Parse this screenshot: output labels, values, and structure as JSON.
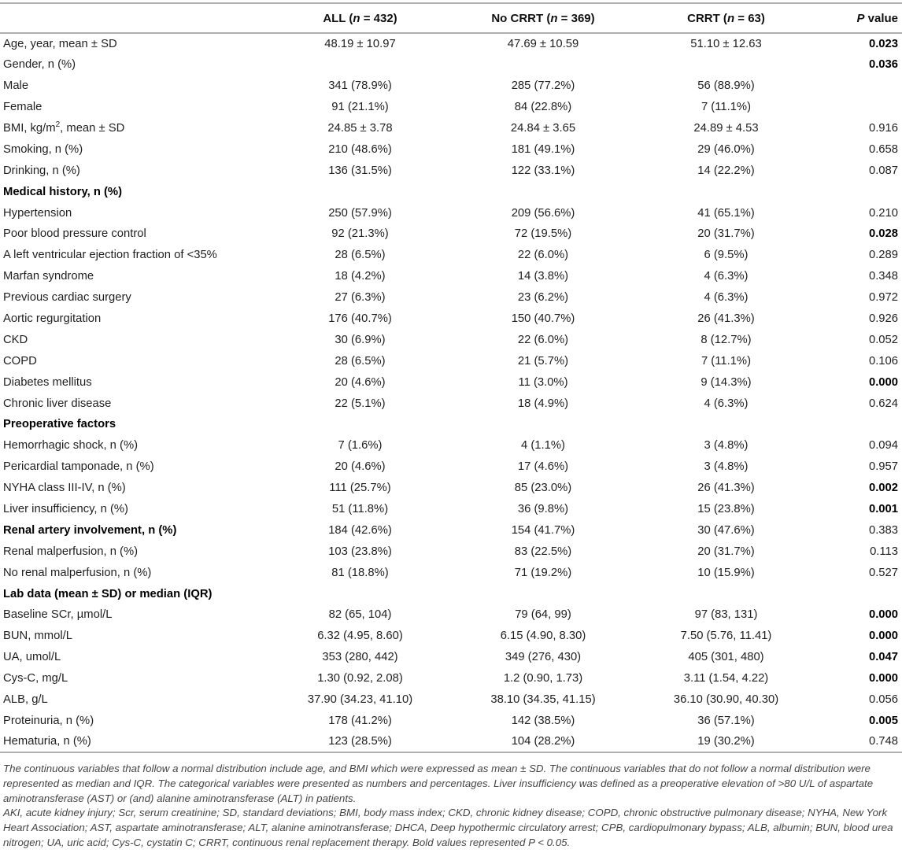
{
  "table": {
    "header": [
      {
        "pre": "",
        "it": "",
        "post": ""
      },
      {
        "pre": "ALL (",
        "it": "n",
        "post": " = 432)"
      },
      {
        "pre": "No CRRT (",
        "it": "n",
        "post": " = 369)"
      },
      {
        "pre": "CRRT (",
        "it": "n",
        "post": " = 63)"
      },
      {
        "pre": "",
        "it": "P",
        "post": " value"
      }
    ],
    "rows": [
      {
        "label": "Age, year, mean ± SD",
        "all": "48.19 ± 10.97",
        "no_crrt": "47.69 ± 10.59",
        "crrt": "51.10 ± 12.63",
        "p": "0.023",
        "p_bold": true
      },
      {
        "label": "Gender, n (%)",
        "all": "",
        "no_crrt": "",
        "crrt": "",
        "p": "0.036",
        "p_bold": true
      },
      {
        "label": "Male",
        "all": "341 (78.9%)",
        "no_crrt": "285 (77.2%)",
        "crrt": "56 (88.9%)",
        "p": ""
      },
      {
        "label": "Female",
        "all": "91 (21.1%)",
        "no_crrt": "84 (22.8%)",
        "crrt": "7 (11.1%)",
        "p": ""
      },
      {
        "label": "BMI, kg/m",
        "label_sup": "2",
        "label_after": ", mean ± SD",
        "all": "24.85 ± 3.78",
        "no_crrt": "24.84 ± 3.65",
        "crrt": "24.89 ± 4.53",
        "p": "0.916"
      },
      {
        "label": "Smoking, n (%)",
        "all": "210 (48.6%)",
        "no_crrt": "181 (49.1%)",
        "crrt": "29 (46.0%)",
        "p": "0.658"
      },
      {
        "label": "Drinking, n (%)",
        "all": "136 (31.5%)",
        "no_crrt": "122 (33.1%)",
        "crrt": "14 (22.2%)",
        "p": "0.087"
      },
      {
        "type": "section",
        "label": "Medical history, n (%)"
      },
      {
        "label": "Hypertension",
        "all": "250 (57.9%)",
        "no_crrt": "209 (56.6%)",
        "crrt": "41 (65.1%)",
        "p": "0.210"
      },
      {
        "label": "Poor blood pressure control",
        "all": "92 (21.3%)",
        "no_crrt": "72 (19.5%)",
        "crrt": "20 (31.7%)",
        "p": "0.028",
        "p_bold": true
      },
      {
        "label": "A left ventricular ejection fraction of <35%",
        "all": "28 (6.5%)",
        "no_crrt": "22 (6.0%)",
        "crrt": "6 (9.5%)",
        "p": "0.289"
      },
      {
        "label": "Marfan syndrome",
        "all": "18 (4.2%)",
        "no_crrt": "14 (3.8%)",
        "crrt": "4 (6.3%)",
        "p": "0.348"
      },
      {
        "label": "Previous cardiac surgery",
        "all": "27 (6.3%)",
        "no_crrt": "23 (6.2%)",
        "crrt": "4 (6.3%)",
        "p": "0.972"
      },
      {
        "label": "Aortic regurgitation",
        "all": "176 (40.7%)",
        "no_crrt": "150 (40.7%)",
        "crrt": "26 (41.3%)",
        "p": "0.926"
      },
      {
        "label": "CKD",
        "all": "30 (6.9%)",
        "no_crrt": "22 (6.0%)",
        "crrt": "8 (12.7%)",
        "p": "0.052"
      },
      {
        "label": "COPD",
        "all": "28 (6.5%)",
        "no_crrt": "21 (5.7%)",
        "crrt": "7 (11.1%)",
        "p": "0.106"
      },
      {
        "label": "Diabetes mellitus",
        "all": "20 (4.6%)",
        "no_crrt": "11 (3.0%)",
        "crrt": "9 (14.3%)",
        "p": "0.000",
        "p_bold": true
      },
      {
        "label": "Chronic liver disease",
        "all": "22 (5.1%)",
        "no_crrt": "18 (4.9%)",
        "crrt": "4 (6.3%)",
        "p": "0.624"
      },
      {
        "type": "section",
        "label": "Preoperative factors"
      },
      {
        "label": "Hemorrhagic shock, n (%)",
        "all": "7 (1.6%)",
        "no_crrt": "4 (1.1%)",
        "crrt": "3 (4.8%)",
        "p": "0.094"
      },
      {
        "label": "Pericardial tamponade, n (%)",
        "all": "20 (4.6%)",
        "no_crrt": "17 (4.6%)",
        "crrt": "3 (4.8%)",
        "p": "0.957"
      },
      {
        "label": "NYHA class III-IV, n (%)",
        "all": "111 (25.7%)",
        "no_crrt": "85 (23.0%)",
        "crrt": "26 (41.3%)",
        "p": "0.002",
        "p_bold": true
      },
      {
        "label": "Liver insufficiency, n (%)",
        "all": "51 (11.8%)",
        "no_crrt": "36 (9.8%)",
        "crrt": "15 (23.8%)",
        "p": "0.001",
        "p_bold": true
      },
      {
        "label": "Renal artery involvement, n (%)",
        "bold_label": true,
        "all": "184 (42.6%)",
        "no_crrt": "154 (41.7%)",
        "crrt": "30 (47.6%)",
        "p": "0.383"
      },
      {
        "label": "Renal malperfusion, n (%)",
        "all": "103 (23.8%)",
        "no_crrt": "83 (22.5%)",
        "crrt": "20 (31.7%)",
        "p": "0.113"
      },
      {
        "label": "No renal malperfusion, n (%)",
        "all": "81 (18.8%)",
        "no_crrt": "71 (19.2%)",
        "crrt": "10 (15.9%)",
        "p": "0.527"
      },
      {
        "type": "section",
        "label": "Lab data (mean ± SD) or median (IQR)"
      },
      {
        "label": "Baseline SCr, µmol/L",
        "all": "82 (65, 104)",
        "no_crrt": "79 (64, 99)",
        "crrt": "97 (83, 131)",
        "p": "0.000",
        "p_bold": true
      },
      {
        "label": "BUN, mmol/L",
        "all": "6.32 (4.95, 8.60)",
        "no_crrt": "6.15 (4.90, 8.30)",
        "crrt": "7.50 (5.76, 11.41)",
        "p": "0.000",
        "p_bold": true
      },
      {
        "label": "UA, umol/L",
        "all": "353 (280, 442)",
        "no_crrt": "349 (276, 430)",
        "crrt": "405 (301, 480)",
        "p": "0.047",
        "p_bold": true
      },
      {
        "label": "Cys-C, mg/L",
        "all": "1.30 (0.92, 2.08)",
        "no_crrt": "1.2 (0.90, 1.73)",
        "crrt": "3.11 (1.54, 4.22)",
        "p": "0.000",
        "p_bold": true
      },
      {
        "label": "ALB, g/L",
        "all": "37.90 (34.23, 41.10)",
        "no_crrt": "38.10 (34.35, 41.15)",
        "crrt": "36.10 (30.90, 40.30)",
        "p": "0.056"
      },
      {
        "label": "Proteinuria, n (%)",
        "all": "178 (41.2%)",
        "no_crrt": "142 (38.5%)",
        "crrt": "36 (57.1%)",
        "p": "0.005",
        "p_bold": true
      },
      {
        "label": "Hematuria, n (%)",
        "all": "123 (28.5%)",
        "no_crrt": "104 (28.2%)",
        "crrt": "19 (30.2%)",
        "p": "0.748"
      }
    ]
  },
  "footnotes": {
    "para1": "The continuous variables that follow a normal distribution include age, and BMI which were expressed as mean ± SD. The continuous variables that do not follow a normal distribution were represented as median and IQR. The categorical variables were presented as numbers and percentages. Liver insufficiency was defined as a preoperative elevation of >80 U/L of aspartate aminotransferase (AST) or (and) alanine aminotransferase (ALT) in patients.",
    "para2": "AKI, acute kidney injury; Scr, serum creatinine; SD, standard deviations; BMI, body mass index; CKD, chronic kidney disease; COPD, chronic obstructive pulmonary disease; NYHA, New York Heart Association; AST, aspartate aminotransferase; ALT, alanine aminotransferase; DHCA, Deep hypothermic circulatory arrest; CPB, cardiopulmonary bypass; ALB, albumin; BUN, blood urea nitrogen; UA, uric acid; Cys-C, cystatin C; CRRT, continuous renal replacement therapy. Bold values represented P < 0.05."
  },
  "colors": {
    "rule": "#b0b0b0",
    "body_text": "#1f1f1f",
    "bold_text": "#000000",
    "footnote_text": "#454545"
  }
}
